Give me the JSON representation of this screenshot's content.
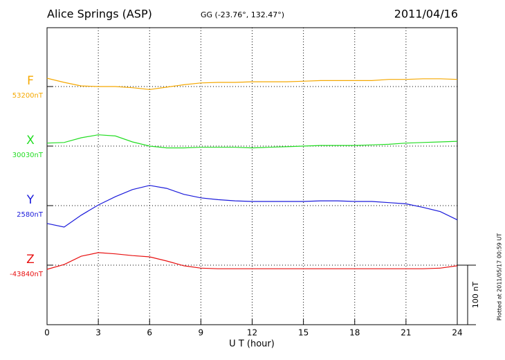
{
  "chart_data": {
    "type": "line",
    "title": "Alice Springs (ASP)",
    "subtitle": "GG (-23.76°, 132.47°)",
    "date": "2011/04/16",
    "x_label": "U T (hour)",
    "note": "Plotted at 2011/05/17 00:59 UT",
    "xlim": [
      0,
      24
    ],
    "xticks": [
      0,
      3,
      6,
      9,
      12,
      15,
      18,
      21,
      24
    ],
    "grid": true,
    "scale_bar": {
      "value": 100,
      "label": "100 nT"
    },
    "x": [
      0,
      1,
      2,
      3,
      4,
      5,
      6,
      7,
      8,
      9,
      10,
      11,
      12,
      13,
      14,
      15,
      16,
      17,
      18,
      19,
      20,
      21,
      22,
      23,
      24
    ],
    "series": [
      {
        "name": "F",
        "color": "#f5a800",
        "baseline": {
          "value": 53200,
          "label": "53200nT"
        },
        "values": [
          53214,
          53207,
          53201,
          53200,
          53200,
          53198,
          53195,
          53199,
          53203,
          53206,
          53207,
          53207,
          53208,
          53208,
          53208,
          53209,
          53210,
          53210,
          53210,
          53210,
          53212,
          53212,
          53213,
          53213,
          53212
        ]
      },
      {
        "name": "X",
        "color": "#22dd22",
        "baseline": {
          "value": 30030,
          "label": "30030nT"
        },
        "values": [
          30035,
          30036,
          30044,
          30049,
          30047,
          30037,
          30030,
          30027,
          30027,
          30028,
          30028,
          30028,
          30027,
          30028,
          30029,
          30030,
          30031,
          30031,
          30031,
          30032,
          30033,
          30035,
          30036,
          30037,
          30038
        ]
      },
      {
        "name": "Y",
        "color": "#1a1adb",
        "baseline": {
          "value": 2580,
          "label": "2580nT"
        },
        "values": [
          2550,
          2544,
          2564,
          2581,
          2595,
          2607,
          2614,
          2609,
          2599,
          2593,
          2590,
          2588,
          2587,
          2587,
          2587,
          2587,
          2588,
          2588,
          2587,
          2587,
          2585,
          2583,
          2577,
          2570,
          2556
        ]
      },
      {
        "name": "Z",
        "color": "#e81010",
        "baseline": {
          "value": -43840,
          "label": "-43840nT"
        },
        "values": [
          -43847,
          -43839,
          -43825,
          -43819,
          -43821,
          -43824,
          -43826,
          -43833,
          -43841,
          -43845,
          -43846,
          -43846,
          -43846,
          -43846,
          -43846,
          -43846,
          -43846,
          -43846,
          -43846,
          -43846,
          -43846,
          -43846,
          -43846,
          -43845,
          -43841
        ]
      }
    ]
  }
}
